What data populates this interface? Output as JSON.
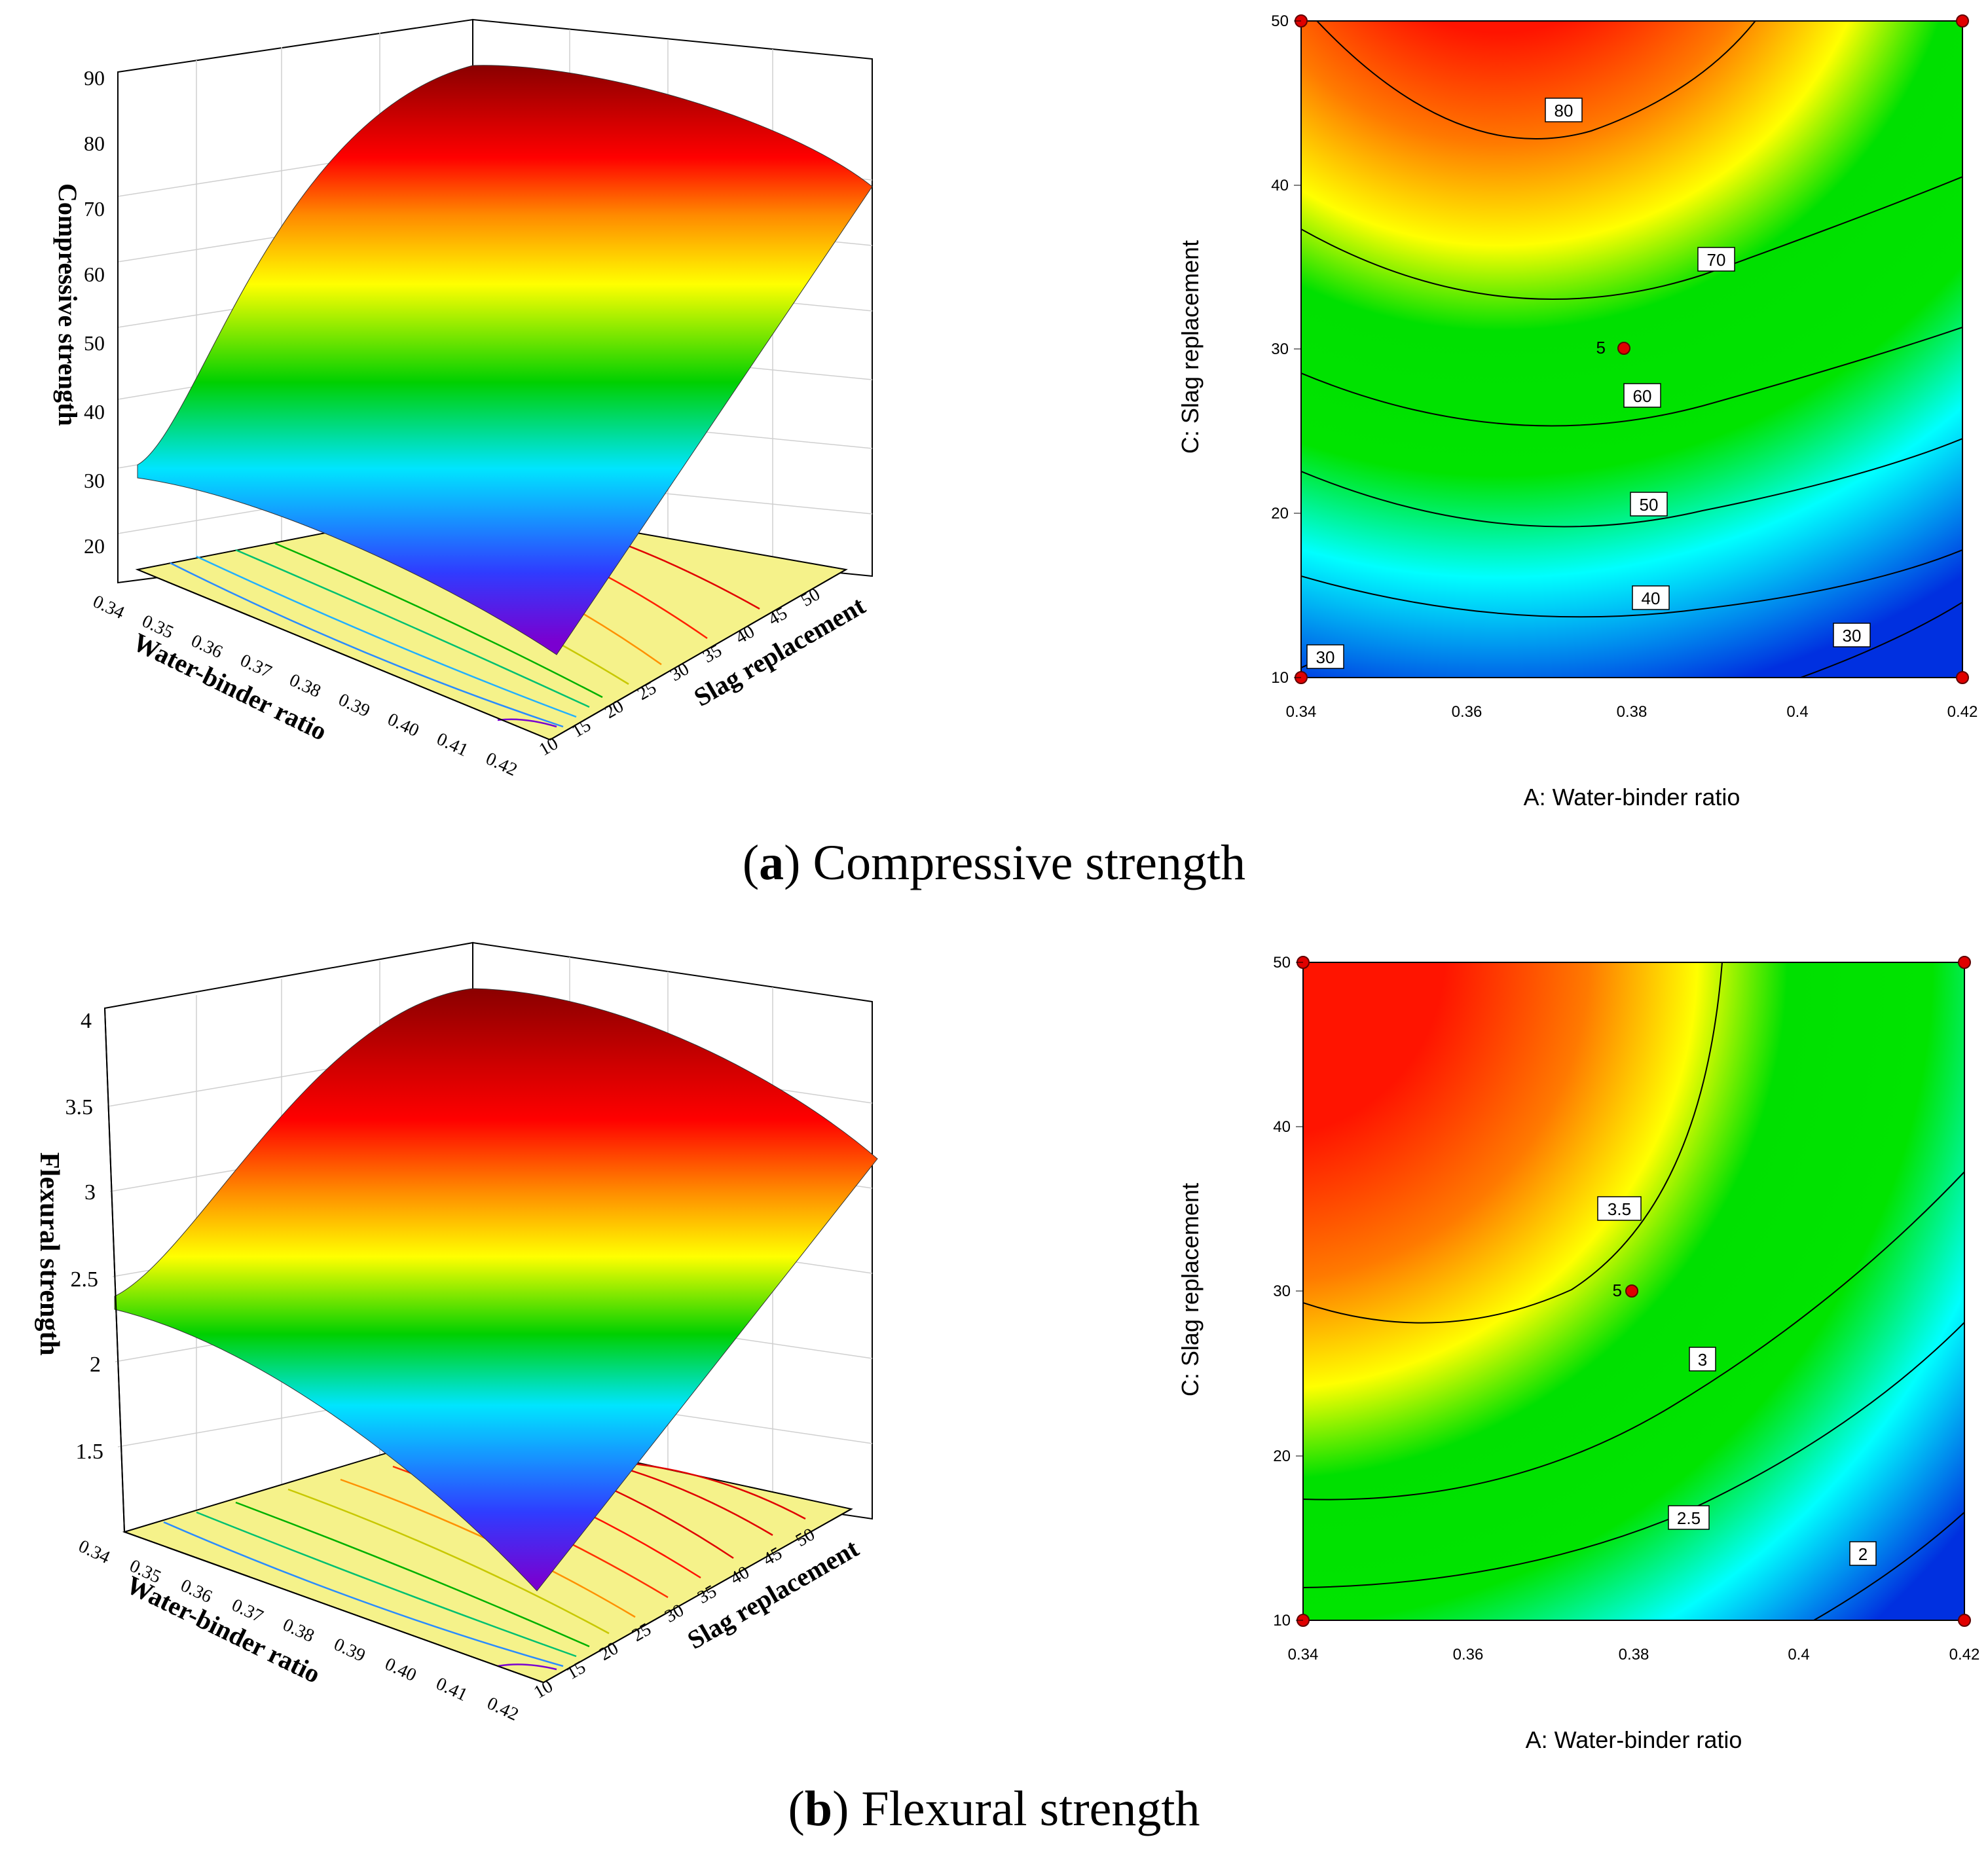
{
  "captions": {
    "a_letter": "a",
    "a_text": "Compressive strength",
    "b_letter": "b",
    "b_text": "Flexural strength"
  },
  "chart_data": [
    {
      "type": "surface3d",
      "panel": "a",
      "zlabel": "Compressive strength",
      "xlabel": "Water-binder ratio",
      "ylabel": "Slag replacement",
      "x_ticks": [
        "0.34",
        "0.35",
        "0.36",
        "0.37",
        "0.38",
        "0.39",
        "0.40",
        "0.41",
        "0.42"
      ],
      "y_ticks": [
        "10",
        "15",
        "20",
        "25",
        "30",
        "35",
        "40",
        "45",
        "50"
      ],
      "z_ticks": [
        "20",
        "30",
        "40",
        "50",
        "60",
        "70",
        "80",
        "90"
      ],
      "xlim": [
        0.34,
        0.42
      ],
      "ylim": [
        10,
        50
      ],
      "zlim": [
        15,
        90
      ],
      "corner_values": {
        "x034_y10": 29,
        "x042_y10": 21,
        "x034_y50": 80,
        "x042_y50": 73
      },
      "peak": {
        "x": 0.37,
        "y": 50,
        "z": 86
      },
      "colormap": [
        "#6a00c8",
        "#2f3cff",
        "#00e5ff",
        "#00d000",
        "#ffff00",
        "#ff7f00",
        "#ff0000",
        "#7a0000"
      ]
    },
    {
      "type": "contour",
      "panel": "a",
      "xlabel": "A: Water-binder ratio",
      "ylabel": "C: Slag replacement",
      "x_ticks": [
        "0.34",
        "0.36",
        "0.38",
        "0.4",
        "0.42"
      ],
      "y_ticks": [
        "10",
        "20",
        "30",
        "40",
        "50"
      ],
      "xlim": [
        0.34,
        0.42
      ],
      "ylim": [
        10,
        50
      ],
      "contour_levels": [
        "80",
        "70",
        "60",
        "50",
        "40",
        "30",
        "30"
      ],
      "center_point": {
        "x": 0.38,
        "y": 30,
        "label": "5"
      },
      "design_points": [
        [
          0.34,
          10
        ],
        [
          0.42,
          10
        ],
        [
          0.34,
          50
        ],
        [
          0.42,
          50
        ],
        [
          0.38,
          30
        ]
      ]
    },
    {
      "type": "surface3d",
      "panel": "b",
      "zlabel": "Flexural strength",
      "xlabel": "Water-binder ratio",
      "ylabel": "Slag replacement",
      "x_ticks": [
        "0.34",
        "0.35",
        "0.36",
        "0.37",
        "0.38",
        "0.39",
        "0.40",
        "0.41",
        "0.42"
      ],
      "y_ticks": [
        "10",
        "15",
        "20",
        "25",
        "30",
        "35",
        "40",
        "45",
        "50"
      ],
      "z_ticks": [
        "1.5",
        "2",
        "2.5",
        "3",
        "3.5",
        "4"
      ],
      "xlim": [
        0.34,
        0.42
      ],
      "ylim": [
        10,
        50
      ],
      "zlim": [
        1.1,
        4.0
      ],
      "corner_values": {
        "x034_y10": 2.45,
        "x042_y10": 1.3,
        "x034_y50": 3.75,
        "x042_y50": 3.3
      },
      "peak": {
        "x": 0.36,
        "y": 45,
        "z": 3.9
      },
      "colormap": [
        "#6a00c8",
        "#2f3cff",
        "#00e5ff",
        "#00d000",
        "#ffff00",
        "#ff7f00",
        "#ff0000",
        "#7a0000"
      ]
    },
    {
      "type": "contour",
      "panel": "b",
      "xlabel": "A: Water-binder ratio",
      "ylabel": "C: Slag replacement",
      "x_ticks": [
        "0.34",
        "0.36",
        "0.38",
        "0.4",
        "0.42"
      ],
      "y_ticks": [
        "10",
        "20",
        "30",
        "40",
        "50"
      ],
      "xlim": [
        0.34,
        0.42
      ],
      "ylim": [
        10,
        50
      ],
      "contour_levels": [
        "3.5",
        "3",
        "2.5",
        "2"
      ],
      "center_point": {
        "x": 0.38,
        "y": 30,
        "label": "5"
      },
      "design_points": [
        [
          0.34,
          10
        ],
        [
          0.42,
          10
        ],
        [
          0.34,
          50
        ],
        [
          0.42,
          50
        ],
        [
          0.38,
          30
        ]
      ]
    }
  ]
}
